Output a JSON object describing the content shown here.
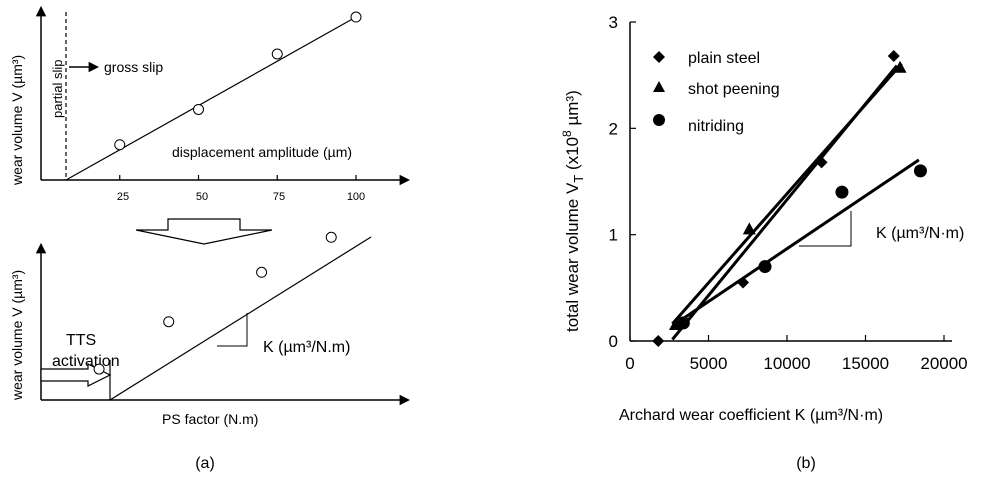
{
  "panel_a": {
    "caption": "(a)",
    "top": {
      "ylabel": "wear volume V (µm³)",
      "xlabel": "displacement amplitude (µm)",
      "ticks": [
        "25",
        "50",
        "75",
        "100"
      ],
      "partial_slip": "partial slip",
      "gross_slip": "gross slip"
    },
    "bottom": {
      "ylabel": "wear volume V (µm³)",
      "xlabel": "PS factor (N.m)",
      "tts_line1": "TTS",
      "tts_line2": "activation",
      "slope_label": "K (µm³/N.m)"
    }
  },
  "panel_b": {
    "caption": "(b)",
    "ylabel_main": "total wear volume V",
    "ylabel_sub": "T",
    "ylabel_rest": " (x10",
    "ylabel_exp": "8",
    "ylabel_unit": " µm³)",
    "xlabel": "Archard wear coefficient  K (µm³/N·m)",
    "slope_label": "K (µm³/N·m)",
    "xticks": [
      "0",
      "5000",
      "10000",
      "15000",
      "20000"
    ],
    "yticks": [
      "0",
      "1",
      "2",
      "3"
    ]
  },
  "chart_data": [
    {
      "type": "scatter",
      "title": "",
      "xlabel": "displacement amplitude (µm)",
      "ylabel": "wear volume V (µm³)",
      "x": [
        25,
        50,
        75,
        100
      ],
      "y": [
        0.21,
        0.42,
        0.75,
        0.97
      ],
      "xlim": [
        0,
        110
      ],
      "annotations": [
        "partial slip",
        "gross slip"
      ]
    },
    {
      "type": "scatter",
      "title": "",
      "xlabel": "PS factor (N.m)",
      "ylabel": "wear volume V (µm³)",
      "x": [
        0.15,
        0.33,
        0.57,
        0.75
      ],
      "y": [
        0.15,
        0.38,
        0.62,
        0.79
      ],
      "annotations": [
        "TTS activation",
        "K (µm³/N.m)"
      ]
    },
    {
      "type": "scatter",
      "title": "",
      "xlabel": "Archard wear coefficient  K (µm³/N·m)",
      "ylabel": "total wear volume VT (x10⁸ µm³)",
      "xlim": [
        0,
        20000
      ],
      "ylim": [
        0,
        3
      ],
      "legend": "top-left",
      "series": [
        {
          "name": "plain steel",
          "marker": "diamond",
          "x": [
            1800,
            3200,
            7200,
            12200,
            16800
          ],
          "y": [
            0.0,
            0.15,
            0.55,
            1.68,
            2.68
          ]
        },
        {
          "name": "shot peening",
          "marker": "triangle",
          "x": [
            2900,
            7600,
            17200
          ],
          "y": [
            0.15,
            1.05,
            2.57
          ]
        },
        {
          "name": "nitriding",
          "marker": "circle",
          "x": [
            3400,
            8600,
            13500,
            18500
          ],
          "y": [
            0.17,
            0.7,
            1.4,
            1.6
          ]
        }
      ]
    }
  ]
}
